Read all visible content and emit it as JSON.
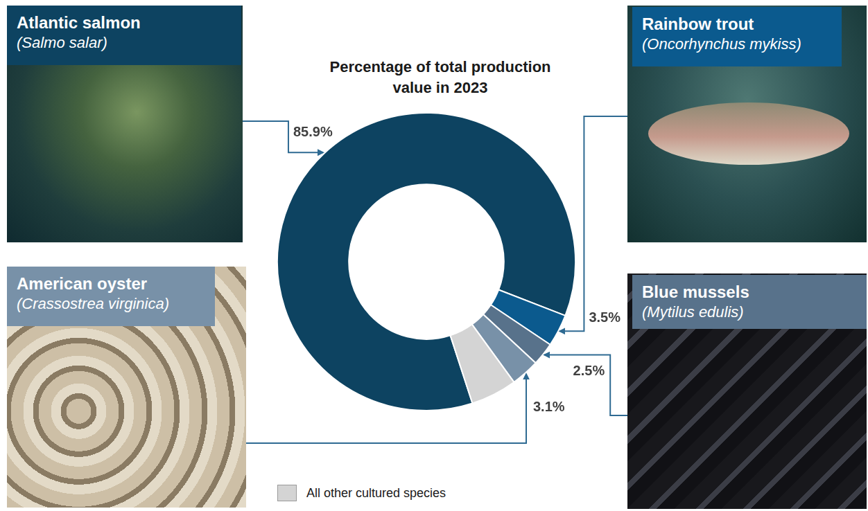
{
  "chart_data": {
    "type": "doughnut",
    "title": "Percentage of total production value in 2023",
    "categories": [
      "Atlantic salmon",
      "Rainbow trout",
      "Blue mussels",
      "American oyster",
      "All other cultured species"
    ],
    "scientific_names": [
      "(Salmo salar)",
      "(Oncorhynchus mykiss)",
      "(Mytilus edulis)",
      "(Crassostrea virginica)",
      null
    ],
    "values": [
      85.9,
      3.5,
      2.5,
      3.1,
      5.0
    ],
    "value_labels": [
      "85.9%",
      "3.5%",
      "2.5%",
      "3.1%",
      null
    ],
    "colors": [
      "#0d4361",
      "#0b5a8e",
      "#58728b",
      "#7891a8",
      "#d4d4d4"
    ],
    "data_labels": true,
    "legend": "bottom"
  }
}
